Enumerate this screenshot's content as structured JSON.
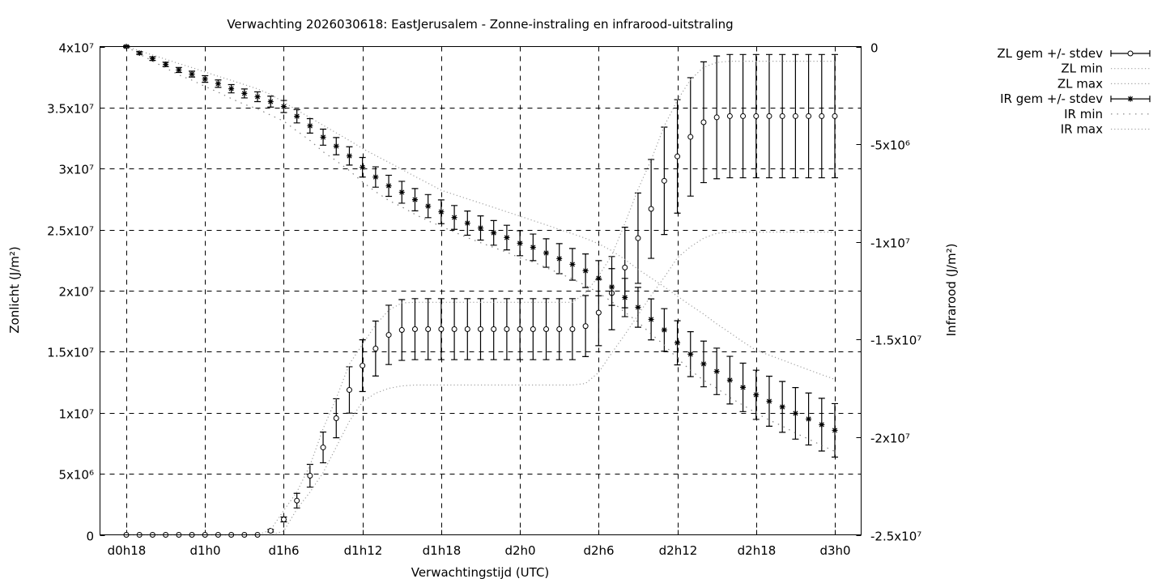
{
  "chart_data": {
    "type": "line",
    "title": "Verwachting 2026030618: EastJerusalem - Zonne-instraling en infrarood-uitstraling",
    "xlabel": "Verwachtingstijd (UTC)",
    "ylabel": "Zonlicht (J/m²)",
    "y2label": "Infrarood (J/m²)",
    "grid": true,
    "legend_position": "outside-right-top",
    "ylim": [
      0,
      40000000.0
    ],
    "y2lim": [
      -25000000.0,
      0
    ],
    "x_ticks": [
      "d0h18",
      "d1h0",
      "d1h6",
      "d1h12",
      "d1h18",
      "d2h0",
      "d2h6",
      "d2h12",
      "d2h18",
      "d3h0"
    ],
    "y_ticks": [
      {
        "value": 0,
        "label": "0"
      },
      {
        "value": 5000000.0,
        "label": "5x10⁶"
      },
      {
        "value": 10000000.0,
        "label": "1x10⁷"
      },
      {
        "value": 15000000.0,
        "label": "1.5x10⁷"
      },
      {
        "value": 20000000.0,
        "label": "2x10⁷"
      },
      {
        "value": 25000000.0,
        "label": "2.5x10⁷"
      },
      {
        "value": 30000000.0,
        "label": "3x10⁷"
      },
      {
        "value": 35000000.0,
        "label": "3.5x10⁷"
      },
      {
        "value": 40000000.0,
        "label": "4x10⁷"
      }
    ],
    "y2_ticks": [
      {
        "value": 0,
        "label": "0"
      },
      {
        "value": -5000000.0,
        "label": "-5x10⁶"
      },
      {
        "value": -10000000.0,
        "label": "-1x10⁷"
      },
      {
        "value": -15000000.0,
        "label": "-1.5x10⁷"
      },
      {
        "value": -20000000.0,
        "label": "-2x10⁷"
      },
      {
        "value": -25000000.0,
        "label": "-2.5x10⁷"
      }
    ],
    "x": [
      "d0h18",
      "d0h19",
      "d0h20",
      "d0h21",
      "d0h22",
      "d0h23",
      "d1h0",
      "d1h1",
      "d1h2",
      "d1h3",
      "d1h4",
      "d1h5",
      "d1h6",
      "d1h7",
      "d1h8",
      "d1h9",
      "d1h10",
      "d1h11",
      "d1h12",
      "d1h13",
      "d1h14",
      "d1h15",
      "d1h16",
      "d1h17",
      "d1h18",
      "d1h19",
      "d1h20",
      "d1h21",
      "d1h22",
      "d1h23",
      "d2h0",
      "d2h1",
      "d2h2",
      "d2h3",
      "d2h4",
      "d2h5",
      "d2h6",
      "d2h7",
      "d2h8",
      "d2h9",
      "d2h10",
      "d2h11",
      "d2h12",
      "d2h13",
      "d2h14",
      "d2h15",
      "d2h16",
      "d2h17",
      "d2h18",
      "d2h19",
      "d2h20",
      "d2h21",
      "d2h22",
      "d2h23",
      "d3h0"
    ],
    "series": [
      {
        "name": "ZL gem +/- stdev",
        "axis": "y",
        "style": "errorbars-circle",
        "color": "#000000",
        "values": [
          0,
          0,
          0,
          0,
          0,
          0,
          0,
          0,
          0,
          0,
          0,
          330000.0,
          1260000.0,
          2800000.0,
          4840000.0,
          7160000.0,
          9550000.0,
          11870000.0,
          13860000.0,
          15260000.0,
          16380000.0,
          16780000.0,
          16850000.0,
          16850000.0,
          16850000.0,
          16850000.0,
          16850000.0,
          16850000.0,
          16850000.0,
          16850000.0,
          16850000.0,
          16850000.0,
          16850000.0,
          16850000.0,
          16850000.0,
          17100000.0,
          18200000.0,
          19800000.0,
          21900000.0,
          24300000.0,
          26700000.0,
          29000000.0,
          31000000.0,
          32600000.0,
          33800000.0,
          34200000.0,
          34300000.0,
          34300000.0,
          34300000.0,
          34300000.0,
          34300000.0,
          34300000.0,
          34300000.0,
          34300000.0,
          34300000.0
        ],
        "stdev": [
          0,
          0,
          0,
          0,
          0,
          0,
          0,
          0,
          0,
          0,
          0,
          100000.0,
          200000.0,
          600000.0,
          930000.0,
          1260000.0,
          1600000.0,
          1900000.0,
          2120000.0,
          2250000.0,
          2430000.0,
          2490000.0,
          2500000.0,
          2500000.0,
          2500000.0,
          2500000.0,
          2500000.0,
          2500000.0,
          2500000.0,
          2500000.0,
          2500000.0,
          2500000.0,
          2500000.0,
          2500000.0,
          2500000.0,
          2500000.0,
          2700000.0,
          3000000.0,
          3300000.0,
          3700000.0,
          4050000.0,
          4400000.0,
          4650000.0,
          4850000.0,
          4950000.0,
          5030000.0,
          5050000.0,
          5050000.0,
          5050000.0,
          5050000.0,
          5050000.0,
          5050000.0,
          5050000.0,
          5050000.0,
          5050000.0
        ]
      },
      {
        "name": "ZL min",
        "axis": "y",
        "style": "dotted",
        "color": "#a0a0a0",
        "values": [
          0,
          0,
          0,
          0,
          0,
          0,
          0,
          0,
          0,
          0,
          0,
          0,
          300000.0,
          2100000.0,
          3500000.0,
          5100000.0,
          7200000.0,
          9300000.0,
          10900000.0,
          11600000.0,
          12000000.0,
          12200000.0,
          12270000.0,
          12270000.0,
          12270000.0,
          12270000.0,
          12270000.0,
          12270000.0,
          12270000.0,
          12270000.0,
          12270000.0,
          12270000.0,
          12270000.0,
          12270000.0,
          12270000.0,
          12400000.0,
          13300000.0,
          14900000.0,
          16400000.0,
          18000000.0,
          19600000.0,
          21100000.0,
          22700000.0,
          23600000.0,
          24300000.0,
          24700000.0,
          24800000.0,
          24800000.0,
          24800000.0,
          24800000.0,
          24800000.0,
          24800000.0,
          24800000.0,
          24800000.0,
          24800000.0
        ]
      },
      {
        "name": "ZL max",
        "axis": "y",
        "style": "dotted",
        "color": "#a0a0a0",
        "values": [
          0,
          0,
          0,
          0,
          0,
          0,
          0,
          0,
          0,
          0,
          0,
          400000.0,
          2000000.0,
          3500000.0,
          5700000.0,
          8700000.0,
          11200000.0,
          14000000.0,
          15600000.0,
          17200000.0,
          18400000.0,
          19000000.0,
          19050000.0,
          19050000.0,
          19050000.0,
          19050000.0,
          19050000.0,
          19050000.0,
          19050000.0,
          19050000.0,
          19050000.0,
          19050000.0,
          19050000.0,
          19050000.0,
          19050000.0,
          19800000.0,
          21200000.0,
          22900000.0,
          25500000.0,
          28300000.0,
          30700000.0,
          33500000.0,
          35600000.0,
          37300000.0,
          38300000.0,
          38700000.0,
          38800000.0,
          38800000.0,
          38800000.0,
          38800000.0,
          38800000.0,
          38800000.0,
          38800000.0,
          38800000.0,
          38800000.0
        ]
      },
      {
        "name": "IR gem +/- stdev",
        "axis": "y2",
        "style": "errorbars-star",
        "color": "#000000",
        "values": [
          0,
          -330000.0,
          -620000.0,
          -910000.0,
          -1200000.0,
          -1410000.0,
          -1660000.0,
          -1900000.0,
          -2160000.0,
          -2400000.0,
          -2570000.0,
          -2820000.0,
          -3070000.0,
          -3570000.0,
          -4060000.0,
          -4640000.0,
          -5100000.0,
          -5600000.0,
          -6180000.0,
          -6680000.0,
          -7130000.0,
          -7460000.0,
          -7840000.0,
          -8170000.0,
          -8460000.0,
          -8750000.0,
          -9040000.0,
          -9290000.0,
          -9540000.0,
          -9780000.0,
          -10070000.0,
          -10280000.0,
          -10570000.0,
          -10860000.0,
          -11150000.0,
          -11480000.0,
          -11860000.0,
          -12310000.0,
          -12850000.0,
          -13350000.0,
          -13970000.0,
          -14510000.0,
          -15170000.0,
          -15750000.0,
          -16250000.0,
          -16630000.0,
          -17080000.0,
          -17450000.0,
          -17830000.0,
          -18160000.0,
          -18450000.0,
          -18780000.0,
          -19070000.0,
          -19360000.0,
          -19650000.0
        ],
        "stdev": [
          50000.0,
          70000.0,
          90000.0,
          110000.0,
          130000.0,
          150000.0,
          170000.0,
          190000.0,
          210000.0,
          230000.0,
          250000.0,
          280000.0,
          310000.0,
          340000.0,
          370000.0,
          410000.0,
          440000.0,
          470000.0,
          500000.0,
          520000.0,
          540000.0,
          560000.0,
          570000.0,
          590000.0,
          610000.0,
          610000.0,
          620000.0,
          620000.0,
          630000.0,
          630000.0,
          640000.0,
          680000.0,
          730000.0,
          770000.0,
          810000.0,
          860000.0,
          900000.0,
          940000.0,
          980000.0,
          1020000.0,
          1050000.0,
          1090000.0,
          1130000.0,
          1150000.0,
          1170000.0,
          1190000.0,
          1220000.0,
          1240000.0,
          1260000.0,
          1280000.0,
          1300000.0,
          1320000.0,
          1330000.0,
          1350000.0,
          1370000.0
        ]
      },
      {
        "name": "IR min",
        "axis": "y2",
        "style": "sparse-dotted",
        "color": "#808080",
        "values": [
          0,
          -390000.0,
          -740000.0,
          -1100000.0,
          -1450000.0,
          -1720000.0,
          -2040000.0,
          -2340000.0,
          -2660000.0,
          -2960000.0,
          -3190000.0,
          -3510000.0,
          -3820000.0,
          -4320000.0,
          -4810000.0,
          -5390000.0,
          -5850000.0,
          -6350000.0,
          -6930000.0,
          -7430000.0,
          -7880000.0,
          -8210000.0,
          -8590000.0,
          -8920000.0,
          -9210000.0,
          -9500000.0,
          -9790000.0,
          -10040000.0,
          -10290000.0,
          -10530000.0,
          -10820000.0,
          -11030000.0,
          -11320000.0,
          -11610000.0,
          -11900000.0,
          -12230000.0,
          -12610000.0,
          -13060000.0,
          -13600000.0,
          -14100000.0,
          -14720000.0,
          -15280000.0,
          -15960000.0,
          -16570000.0,
          -17090000.0,
          -17490000.0,
          -17970000.0,
          -18360000.0,
          -18770000.0,
          -19120000.0,
          -19430000.0,
          -19790000.0,
          -20100000.0,
          -20420000.0,
          -20730000.0
        ]
      },
      {
        "name": "IR max",
        "axis": "y2",
        "style": "dotted",
        "color": "#a0a0a0",
        "values": [
          0,
          -220000.0,
          -430000.0,
          -650000.0,
          -870000.0,
          -1080000.0,
          -1300000.0,
          -1520000.0,
          -1730000.0,
          -1950000.0,
          -2170000.0,
          -2450000.0,
          -2850000.0,
          -3250000.0,
          -3640000.0,
          -4030000.0,
          -4420000.0,
          -4810000.0,
          -5220000.0,
          -5580000.0,
          -5930000.0,
          -6290000.0,
          -6650000.0,
          -7000000.0,
          -7360000.0,
          -7580000.0,
          -7800000.0,
          -8020000.0,
          -8240000.0,
          -8460000.0,
          -8680000.0,
          -8910000.0,
          -9130000.0,
          -9360000.0,
          -9580000.0,
          -9820000.0,
          -10100000.0,
          -10450000.0,
          -10900000.0,
          -11400000.0,
          -11850000.0,
          -12300000.0,
          -12780000.0,
          -13250000.0,
          -13700000.0,
          -14200000.0,
          -14650000.0,
          -15120000.0,
          -15550000.0,
          -15800000.0,
          -16050000.0,
          -16300000.0,
          -16550000.0,
          -16800000.0,
          -17040000.0
        ]
      }
    ]
  }
}
